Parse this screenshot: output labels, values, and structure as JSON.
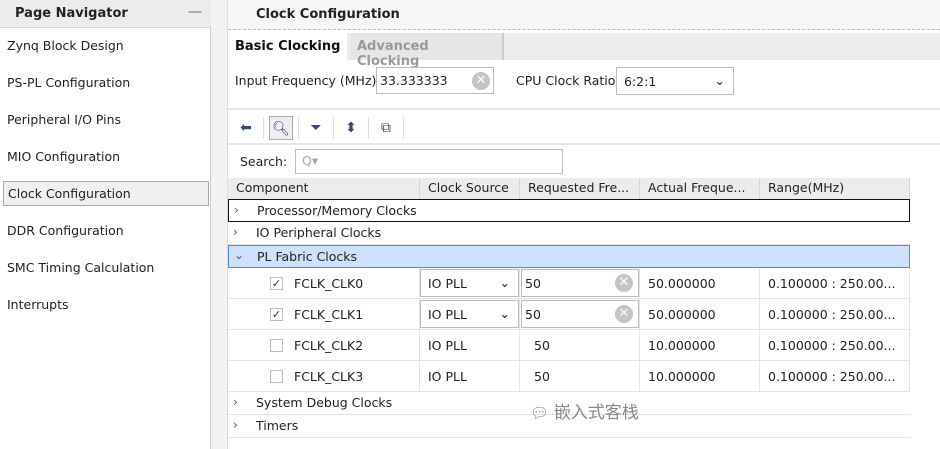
{
  "nav": {
    "title": "Page Navigator",
    "minimize": "—",
    "items": [
      "Zynq Block Design",
      "PS-PL Configuration",
      "Peripheral I/O Pins",
      "MIO Configuration",
      "Clock Configuration",
      "DDR Configuration",
      "SMC Timing Calculation",
      "Interrupts"
    ],
    "selected": "Clock Configuration"
  },
  "main": {
    "title": "Clock Configuration",
    "tabs": [
      "Basic Clocking",
      "Advanced Clocking"
    ],
    "input_freq_label": "Input Frequency (MHz)",
    "input_freq_value": "33.333333",
    "cpu_ratio_label": "CPU Clock Ratio",
    "cpu_ratio_value": "6:2:1",
    "search_label": "Search:",
    "search_placeholder": "Q▾",
    "columns": [
      "Component",
      "Clock Source",
      "Requested Fre...",
      "Actual Freque...",
      "Range(MHz)"
    ],
    "groups": [
      {
        "name": "Processor/Memory Clocks",
        "expanded": false
      },
      {
        "name": "IO Peripheral Clocks",
        "expanded": false
      },
      {
        "name": "PL Fabric Clocks",
        "expanded": true
      },
      {
        "name": "System Debug Clocks",
        "expanded": false
      },
      {
        "name": "Timers",
        "expanded": false
      }
    ],
    "rows": [
      {
        "checked": true,
        "name": "FCLK_CLK0",
        "source": "IO PLL",
        "requested": "50",
        "actual": "50.000000",
        "range": "0.100000 : 250.00..."
      },
      {
        "checked": true,
        "name": "FCLK_CLK1",
        "source": "IO PLL",
        "requested": "50",
        "actual": "50.000000",
        "range": "0.100000 : 250.00..."
      },
      {
        "checked": false,
        "name": "FCLK_CLK2",
        "source": "IO PLL",
        "requested": "50",
        "actual": "10.000000",
        "range": "0.100000 : 250.00..."
      },
      {
        "checked": false,
        "name": "FCLK_CLK3",
        "source": "IO PLL",
        "requested": "50",
        "actual": "10.000000",
        "range": "0.100000 : 250.00..."
      }
    ]
  },
  "watermark": "嵌入式客栈",
  "colors": {
    "selected_row": "#cfe0fa",
    "selected_border": "#4a90d9",
    "toolbar_icon": "#2c4a7a"
  }
}
